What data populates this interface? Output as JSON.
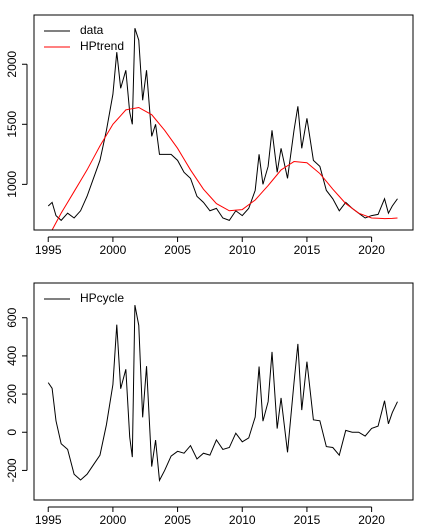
{
  "chart_data": [
    {
      "type": "line",
      "x": [
        1995.0,
        1995.3,
        1995.6,
        1996.0,
        1996.5,
        1997.0,
        1997.5,
        1998.0,
        1998.5,
        1999.0,
        1999.5,
        2000.0,
        2000.3,
        2000.6,
        2001.0,
        2001.3,
        2001.5,
        2001.7,
        2002.0,
        2002.3,
        2002.6,
        2003.0,
        2003.3,
        2003.6,
        2004.0,
        2004.5,
        2005.0,
        2005.5,
        2006.0,
        2006.5,
        2007.0,
        2007.5,
        2008.0,
        2008.5,
        2009.0,
        2009.5,
        2010.0,
        2010.5,
        2011.0,
        2011.3,
        2011.6,
        2012.0,
        2012.3,
        2012.7,
        2013.0,
        2013.5,
        2014.0,
        2014.3,
        2014.6,
        2015.0,
        2015.5,
        2016.0,
        2016.5,
        2017.0,
        2017.5,
        2018.0,
        2018.5,
        2019.0,
        2019.5,
        2020.0,
        2020.5,
        2021.0,
        2021.3,
        2021.6,
        2022.0
      ],
      "series": [
        {
          "name": "data",
          "color": "#000000",
          "values": [
            820,
            850,
            740,
            700,
            760,
            720,
            780,
            900,
            1050,
            1200,
            1450,
            1750,
            2100,
            1800,
            1950,
            1600,
            1500,
            2300,
            2200,
            1700,
            1950,
            1400,
            1500,
            1250,
            1250,
            1250,
            1200,
            1100,
            1050,
            900,
            850,
            780,
            800,
            720,
            700,
            780,
            740,
            800,
            950,
            1250,
            1000,
            1150,
            1450,
            1100,
            1300,
            1050,
            1450,
            1650,
            1300,
            1550,
            1200,
            1150,
            950,
            880,
            780,
            850,
            800,
            760,
            720,
            740,
            750,
            880,
            760,
            820,
            880
          ]
        },
        {
          "name": "HPtrend",
          "color": "#ff0000",
          "values": [
            560,
            620,
            680,
            760,
            850,
            940,
            1030,
            1120,
            1220,
            1320,
            1410,
            1500,
            1536,
            1572,
            1620,
            1626,
            1630,
            1634,
            1640,
            1622,
            1604,
            1580,
            1541,
            1502,
            1450,
            1375,
            1300,
            1210,
            1120,
            1040,
            960,
            900,
            840,
            810,
            780,
            785,
            790,
            830,
            870,
            906,
            942,
            990,
            1029,
            1081,
            1120,
            1155,
            1190,
            1187,
            1184,
            1180,
            1135,
            1090,
            1025,
            960,
            900,
            840,
            800,
            760,
            740,
            720,
            718,
            715,
            716,
            717,
            720
          ]
        }
      ],
      "xlim": [
        1993.9,
        2023.2
      ],
      "xticks": [
        1995,
        2000,
        2005,
        2010,
        2015,
        2020
      ],
      "ylim": [
        620,
        2410
      ],
      "yticks": [
        1000,
        1500,
        2000
      ],
      "legend": "top-left"
    },
    {
      "type": "line",
      "x": [
        1995.0,
        1995.3,
        1995.6,
        1996.0,
        1996.5,
        1997.0,
        1997.5,
        1998.0,
        1998.5,
        1999.0,
        1999.5,
        2000.0,
        2000.3,
        2000.6,
        2001.0,
        2001.3,
        2001.5,
        2001.7,
        2002.0,
        2002.3,
        2002.6,
        2003.0,
        2003.3,
        2003.6,
        2004.0,
        2004.5,
        2005.0,
        2005.5,
        2006.0,
        2006.5,
        2007.0,
        2007.5,
        2008.0,
        2008.5,
        2009.0,
        2009.5,
        2010.0,
        2010.5,
        2011.0,
        2011.3,
        2011.6,
        2012.0,
        2012.3,
        2012.7,
        2013.0,
        2013.5,
        2014.0,
        2014.3,
        2014.6,
        2015.0,
        2015.5,
        2016.0,
        2016.5,
        2017.0,
        2017.5,
        2018.0,
        2018.5,
        2019.0,
        2019.5,
        2020.0,
        2020.5,
        2021.0,
        2021.3,
        2021.6,
        2022.0
      ],
      "series": [
        {
          "name": "HPcycle",
          "color": "#000000",
          "values": [
            260,
            230,
            60,
            -60,
            -90,
            -220,
            -250,
            -220,
            -170,
            -120,
            40,
            250,
            564,
            228,
            330,
            -26,
            -130,
            666,
            560,
            78,
            346,
            -180,
            -41,
            -252,
            -200,
            -125,
            -100,
            -110,
            -70,
            -140,
            -110,
            -120,
            -40,
            -90,
            -80,
            -5,
            -50,
            -30,
            80,
            344,
            58,
            160,
            421,
            19,
            180,
            -105,
            260,
            463,
            116,
            370,
            65,
            60,
            -75,
            -80,
            -120,
            10,
            0,
            0,
            -20,
            20,
            32,
            165,
            44,
            103,
            160
          ]
        }
      ],
      "xlim": [
        1993.9,
        2023.2
      ],
      "xticks": [
        1995,
        2000,
        2005,
        2010,
        2015,
        2020
      ],
      "ylim": [
        -355,
        782
      ],
      "yticks": [
        -200,
        0,
        200,
        400,
        600
      ],
      "legend": "top-left"
    }
  ]
}
